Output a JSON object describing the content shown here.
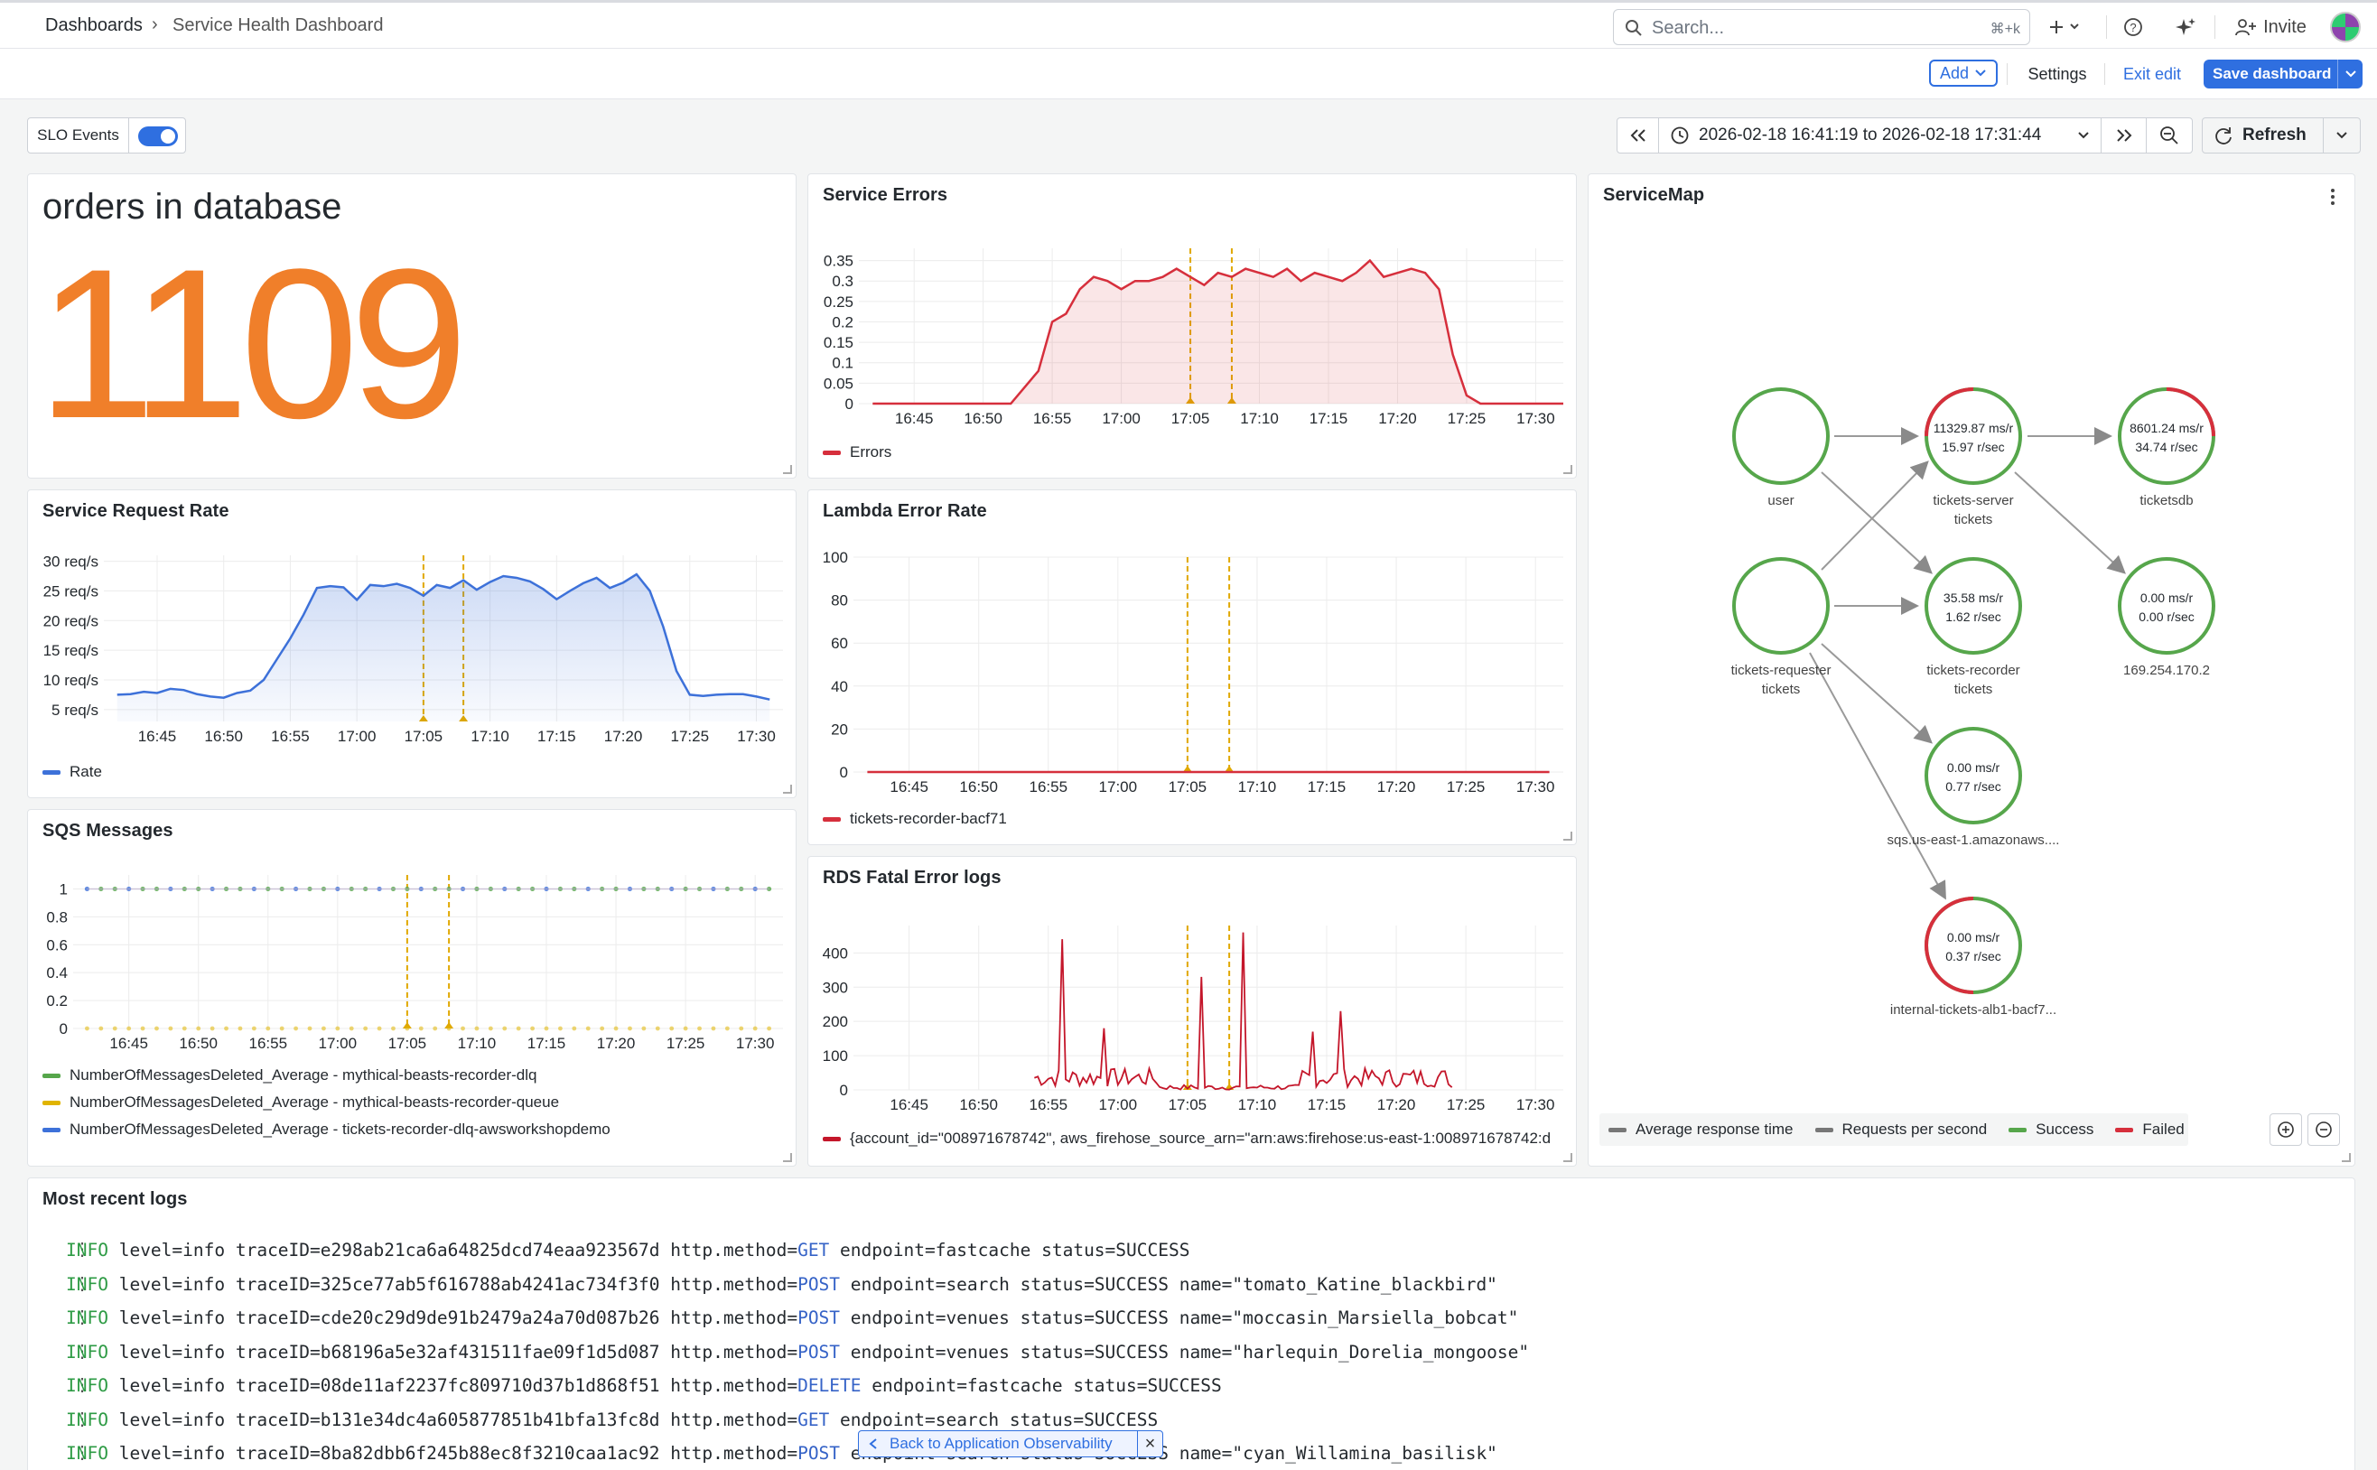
{
  "breadcrumb": {
    "root": "Dashboards",
    "sep": "›",
    "current": "Service Health Dashboard"
  },
  "search": {
    "placeholder": "Search...",
    "shortcut": "⌘+k"
  },
  "topnav": {
    "invite": "Invite"
  },
  "toolbar": {
    "add": "Add",
    "settings": "Settings",
    "exit_edit": "Exit edit",
    "save": "Save dashboard"
  },
  "controls": {
    "slo_label": "SLO Events",
    "slo_on": true,
    "time_range": "2026-02-18 16:41:19 to 2026-02-18 17:31:44",
    "refresh": "Refresh"
  },
  "stat_panel": {
    "title": "orders in database",
    "value": "1109",
    "color": "#f07f2a"
  },
  "service_errors": {
    "title": "Service Errors",
    "chart_data": {
      "type": "area",
      "x": [
        "16:42",
        "16:44",
        "16:46",
        "16:48",
        "16:50",
        "16:52",
        "16:54",
        "16:55",
        "16:56",
        "16:57",
        "16:58",
        "16:59",
        "17:00",
        "17:01",
        "17:02",
        "17:03",
        "17:04",
        "17:05",
        "17:06",
        "17:07",
        "17:08",
        "17:09",
        "17:10",
        "17:11",
        "17:12",
        "17:13",
        "17:14",
        "17:15",
        "17:16",
        "17:17",
        "17:18",
        "17:19",
        "17:20",
        "17:21",
        "17:22",
        "17:23",
        "17:24",
        "17:25",
        "17:26",
        "17:28",
        "17:30",
        "17:32"
      ],
      "series": [
        {
          "name": "Errors",
          "color": "#d62f3c",
          "values": [
            0,
            0,
            0,
            0,
            0,
            0,
            0.08,
            0.2,
            0.22,
            0.28,
            0.31,
            0.3,
            0.28,
            0.3,
            0.3,
            0.31,
            0.33,
            0.31,
            0.29,
            0.32,
            0.31,
            0.33,
            0.32,
            0.31,
            0.33,
            0.3,
            0.32,
            0.31,
            0.3,
            0.32,
            0.35,
            0.31,
            0.32,
            0.33,
            0.32,
            0.28,
            0.12,
            0.02,
            0,
            0,
            0,
            0
          ]
        }
      ],
      "yticks": [
        "0",
        "0.05",
        "0.1",
        "0.15",
        "0.2",
        "0.25",
        "0.3",
        "0.35"
      ],
      "xticks": [
        "16:45",
        "16:50",
        "16:55",
        "17:00",
        "17:05",
        "17:10",
        "17:15",
        "17:20",
        "17:25",
        "17:30"
      ],
      "ylim": [
        0,
        0.38
      ]
    }
  },
  "request_rate": {
    "title": "Service Request Rate",
    "chart_data": {
      "type": "area",
      "x": [
        "16:42",
        "16:43",
        "16:44",
        "16:45",
        "16:46",
        "16:47",
        "16:48",
        "16:49",
        "16:50",
        "16:51",
        "16:52",
        "16:53",
        "16:54",
        "16:55",
        "16:56",
        "16:57",
        "16:58",
        "16:59",
        "17:00",
        "17:01",
        "17:02",
        "17:03",
        "17:04",
        "17:05",
        "17:06",
        "17:07",
        "17:08",
        "17:09",
        "17:10",
        "17:11",
        "17:12",
        "17:13",
        "17:14",
        "17:15",
        "17:16",
        "17:17",
        "17:18",
        "17:19",
        "17:20",
        "17:21",
        "17:22",
        "17:23",
        "17:24",
        "17:25",
        "17:26",
        "17:27",
        "17:28",
        "17:29",
        "17:30",
        "17:31"
      ],
      "series": [
        {
          "name": "Rate",
          "color": "#3d71d9",
          "values": [
            7.5,
            7.6,
            8,
            7.8,
            8.5,
            8.3,
            7.6,
            7.2,
            7.0,
            7.8,
            8.2,
            10,
            13.5,
            17,
            21,
            25.5,
            25.8,
            25.6,
            23.5,
            26,
            25.8,
            26.2,
            25.5,
            24.2,
            26,
            25.5,
            26.8,
            25.2,
            26.5,
            27.5,
            27.2,
            26.6,
            25.3,
            23.6,
            25,
            26.3,
            27.2,
            25.5,
            26.4,
            27.8,
            25,
            19,
            11.5,
            7.5,
            7.3,
            7.5,
            7.6,
            7.6,
            7.2,
            6.7
          ]
        }
      ],
      "yticks": [
        "5 req/s",
        "10 req/s",
        "15 req/s",
        "20 req/s",
        "25 req/s",
        "30 req/s"
      ],
      "xticks": [
        "16:45",
        "16:50",
        "16:55",
        "17:00",
        "17:05",
        "17:10",
        "17:15",
        "17:20",
        "17:25",
        "17:30"
      ],
      "ylim": [
        3,
        31
      ]
    }
  },
  "lambda_errors": {
    "title": "Lambda Error Rate",
    "chart_data": {
      "type": "line",
      "series": [
        {
          "name": "tickets-recorder-bacf71",
          "color": "#d62f3c",
          "values": [
            0,
            0
          ]
        }
      ],
      "yticks": [
        "0",
        "20",
        "40",
        "60",
        "80",
        "100"
      ],
      "xticks": [
        "16:45",
        "16:50",
        "16:55",
        "17:00",
        "17:05",
        "17:10",
        "17:15",
        "17:20",
        "17:25",
        "17:30"
      ],
      "ylim": [
        0,
        100
      ]
    }
  },
  "sqs_messages": {
    "title": "SQS Messages",
    "chart_data": {
      "type": "line",
      "series": [
        {
          "name": "NumberOfMessagesDeleted_Average - mythical-beasts-recorder-dlq",
          "color": "#56a64b",
          "values": [
            1,
            1
          ]
        },
        {
          "name": "NumberOfMessagesDeleted_Average - mythical-beasts-recorder-queue",
          "color": "#e0b400",
          "values": [
            0,
            0
          ]
        },
        {
          "name": "NumberOfMessagesDeleted_Average - tickets-recorder-dlq-awsworkshopdemo",
          "color": "#3d71d9",
          "values": [
            1,
            1
          ]
        }
      ],
      "yticks": [
        "0",
        "0.2",
        "0.4",
        "0.6",
        "0.8",
        "1"
      ],
      "xticks": [
        "16:45",
        "16:50",
        "16:55",
        "17:00",
        "17:05",
        "17:10",
        "17:15",
        "17:20",
        "17:25",
        "17:30"
      ],
      "ylim": [
        0,
        1.1
      ]
    }
  },
  "rds_logs": {
    "title": "RDS Fatal Error logs",
    "chart_data": {
      "type": "line",
      "series": [
        {
          "name": "{account_id=\"008971678742\", aws_firehose_source_arn=\"arn:aws:firehose:us-east-1:008971678742:d",
          "color": "#c4162a"
        }
      ],
      "yticks": [
        "0",
        "100",
        "200",
        "300",
        "400"
      ],
      "xticks": [
        "16:45",
        "16:50",
        "16:55",
        "17:00",
        "17:05",
        "17:10",
        "17:15",
        "17:20",
        "17:25",
        "17:30"
      ],
      "ylim": [
        0,
        480
      ],
      "spikes": [
        [
          "16:56",
          440
        ],
        [
          "16:59",
          180
        ],
        [
          "17:06",
          330
        ],
        [
          "17:09",
          460
        ],
        [
          "17:14",
          170
        ],
        [
          "17:16",
          230
        ]
      ]
    }
  },
  "service_map": {
    "title": "ServiceMap",
    "nodes": [
      {
        "label": "user",
        "line1": "",
        "line2": "",
        "sub": ""
      },
      {
        "label": "tickets-server",
        "sub": "tickets",
        "line1": "11329.87 ms/r",
        "line2": "15.97 r/sec"
      },
      {
        "label": "ticketsdb",
        "sub": "",
        "line1": "8601.24 ms/r",
        "line2": "34.74 r/sec"
      },
      {
        "label": "tickets-requester",
        "sub": "tickets",
        "line1": "",
        "line2": ""
      },
      {
        "label": "tickets-recorder",
        "sub": "tickets",
        "line1": "35.58 ms/r",
        "line2": "1.62 r/sec"
      },
      {
        "label": "169.254.170.2",
        "sub": "",
        "line1": "0.00 ms/r",
        "line2": "0.00 r/sec"
      },
      {
        "label": "sqs.us-east-1.amazonaws....",
        "sub": "",
        "line1": "0.00 ms/r",
        "line2": "0.77 r/sec"
      },
      {
        "label": "internal-tickets-alb1-bacf7...",
        "sub": "",
        "line1": "0.00 ms/r",
        "line2": "0.37 r/sec"
      }
    ],
    "legend": [
      "Average response time",
      "Requests per second",
      "Success",
      "Failed"
    ],
    "colors": {
      "success": "#56a64b",
      "failed": "#d62f3c",
      "neutral": "#777"
    }
  },
  "logs": {
    "title": "Most recent logs",
    "lines": [
      {
        "level": "INFO",
        "a": " level=info traceID=e298ab21ca6a64825dcd74eaa923567d http.method=",
        "m": "GET",
        "b": " endpoint=fastcache status=SUCCESS"
      },
      {
        "level": "INFO",
        "a": " level=info traceID=325ce77ab5f616788ab4241ac734f3f0 http.method=",
        "m": "POST",
        "b": " endpoint=search status=SUCCESS name=\"tomato_Katine_blackbird\""
      },
      {
        "level": "INFO",
        "a": " level=info traceID=cde20c29d9de91b2479a24a70d087b26 http.method=",
        "m": "POST",
        "b": " endpoint=venues status=SUCCESS name=\"moccasin_Marsiella_bobcat\""
      },
      {
        "level": "INFO",
        "a": " level=info traceID=b68196a5e32af431511fae09f1d5d087 http.method=",
        "m": "POST",
        "b": " endpoint=venues status=SUCCESS name=\"harlequin_Dorelia_mongoose\""
      },
      {
        "level": "INFO",
        "a": " level=info traceID=08de11af2237fc809710d37b1d868f51 http.method=",
        "m": "DELETE",
        "b": " endpoint=fastcache status=SUCCESS"
      },
      {
        "level": "INFO",
        "a": " level=info traceID=b131e34dc4a605877851b41bfa13fc8d http.method=",
        "m": "GET",
        "b": " endpoint=search status=SUCCESS"
      },
      {
        "level": "INFO",
        "a": " level=info traceID=8ba82dbb6f245b88ec8f3210caa1ac92 http.method=",
        "m": "POST",
        "b": " endpoint=search status=SUCCESS name=\"cyan_Willamina_basilisk\""
      }
    ]
  },
  "toast": {
    "label": "Back to Application Observability",
    "close": "×"
  }
}
